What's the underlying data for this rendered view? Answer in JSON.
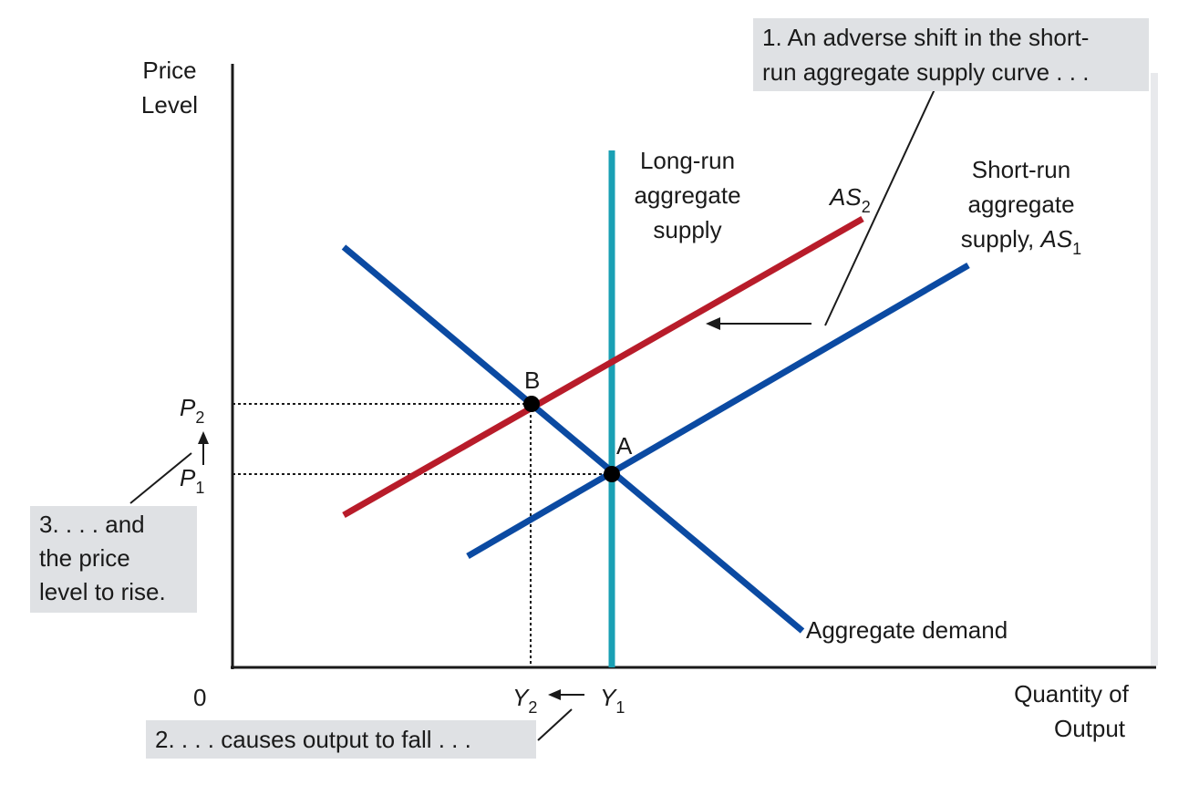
{
  "colors": {
    "axis": "#1a1a1a",
    "aggregate_demand": "#0b4aa2",
    "short_run_as1": "#0b4aa2",
    "short_run_as2": "#b81c2a",
    "long_run_as": "#1aa0b4",
    "callout_bg": "#dfe1e4",
    "callout_shadow": "#e8e9ec"
  },
  "axes": {
    "y_label_line1": "Price",
    "y_label_line2": "Level",
    "x_label_line1": "Quantity of",
    "x_label_line2": "Output",
    "origin": "0"
  },
  "ticks": {
    "p2": "P",
    "p2_sub": "2",
    "p1": "P",
    "p1_sub": "1",
    "y2": "Y",
    "y2_sub": "2",
    "y1": "Y",
    "y1_sub": "1"
  },
  "curves": {
    "long_run_line1": "Long-run",
    "long_run_line2": "aggregate",
    "long_run_line3": "supply",
    "short_run_line1": "Short-run",
    "short_run_line2": "aggregate",
    "short_run_line3": "supply,",
    "short_run_as": "AS",
    "short_run_as_sub": "1",
    "as2": "AS",
    "as2_sub": "2",
    "aggregate_demand": "Aggregate demand"
  },
  "points": {
    "b": "B",
    "a": "A"
  },
  "callouts": {
    "c1_line1": "1. An adverse shift in the short-",
    "c1_line2": "run aggregate supply curve . . .",
    "c2": "2. . . . causes output to fall . . .",
    "c3_line1": "3. . . . and",
    "c3_line2": "the price",
    "c3_line3": "level to rise."
  }
}
